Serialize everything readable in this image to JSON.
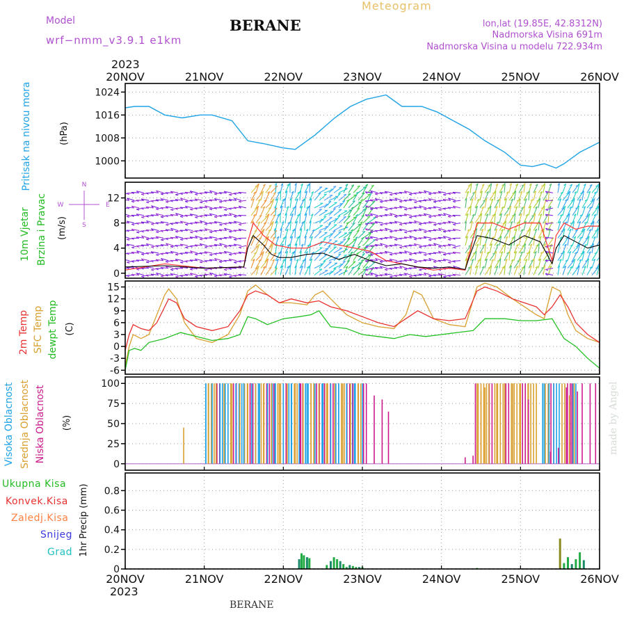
{
  "header": {
    "model_label": "Model",
    "model_name": "wrf−nmm_v3.9.1  e1km",
    "title": "BERANE",
    "meteogram_label": "Meteogram",
    "coords": "lon,lat (19.85E, 42.8312N)",
    "elevation": "Nadmorska Visina 691m",
    "model_elevation": "Nadmorska Visina u modelu 722.934m"
  },
  "time_axis": {
    "top_year": "2023",
    "bottom_year": "2023",
    "labels": [
      "20NOV",
      "21NOV",
      "22NOV",
      "23NOV",
      "24NOV",
      "25NOV",
      "26NOV"
    ]
  },
  "footer_label": "BERANE",
  "watermark": "made by Angel",
  "colors": {
    "pressure": "#1ea3e6",
    "wind_speed": "#000000",
    "wind_gust": "#ff3030",
    "temp2m": "#e8312f",
    "sfc_temp": "#d9a030",
    "dewpoint": "#22c022",
    "high_cloud": "#1ea3e6",
    "mid_cloud": "#d9a030",
    "low_cloud": "#cc1a8c",
    "total_precip": "#22aa44",
    "convective": "#e8312f",
    "freezing": "#ff8040",
    "snow": "#3a3ae0",
    "hail": "#20c0c0",
    "model_label": "#b050d0",
    "panel_label": "#b050d0"
  },
  "chart_data": [
    {
      "type": "line",
      "panel": "pressure",
      "ylabel_name": "Pritisak na nivou mora",
      "unit": "(hPa)",
      "yticks": [
        1000,
        1008,
        1016,
        1024
      ],
      "ylim": [
        994,
        1027
      ],
      "x_days": [
        0,
        0.12,
        0.3,
        0.5,
        0.72,
        0.95,
        1.1,
        1.35,
        1.55,
        1.75,
        2.0,
        2.15,
        2.4,
        2.65,
        2.85,
        3.05,
        3.3,
        3.5,
        3.75,
        3.95,
        4.15,
        4.35,
        4.55,
        4.8,
        5.0,
        5.15,
        5.3,
        5.45,
        5.55,
        5.75,
        6.0
      ],
      "values": [
        1018.5,
        1019,
        1019,
        1016,
        1015,
        1016,
        1016,
        1014,
        1007,
        1006,
        1004.5,
        1004,
        1009,
        1015,
        1019,
        1021.5,
        1023,
        1019,
        1019,
        1017,
        1014,
        1011,
        1007,
        1003,
        998.5,
        998,
        999,
        997.5,
        999,
        1003,
        1006.5
      ]
    },
    {
      "type": "line",
      "panel": "wind",
      "ylabel_name": "10m Vjetar",
      "ylabel_name2": "Brzina i Pravac",
      "unit": "(m/s)",
      "compass": {
        "n": "N",
        "w": "W",
        "e": "E",
        "s": "S"
      },
      "yticks": [
        0,
        4,
        8,
        12
      ],
      "ylim": [
        -0.8,
        14.5
      ],
      "series": [
        {
          "name": "speed",
          "x_days": [
            0,
            0.5,
            1.0,
            1.5,
            1.55,
            1.62,
            1.75,
            1.85,
            1.95,
            2.1,
            2.3,
            2.5,
            2.7,
            2.9,
            3.1,
            3.3,
            3.5,
            3.7,
            3.9,
            4.1,
            4.3,
            4.35,
            4.45,
            4.65,
            4.85,
            5.05,
            5.25,
            5.4,
            5.45,
            5.55,
            5.7,
            5.85,
            6.0
          ],
          "values": [
            1.0,
            1.2,
            0.8,
            1.0,
            4.0,
            6.0,
            4.5,
            3.0,
            2.5,
            2.5,
            3.0,
            3.2,
            2.2,
            3.0,
            2.0,
            1.2,
            1.5,
            1.0,
            0.8,
            1.0,
            0.6,
            2.5,
            6.0,
            5.5,
            4.5,
            6.0,
            5.0,
            1.5,
            4.0,
            6.0,
            5.0,
            4.0,
            4.5
          ]
        },
        {
          "name": "gust",
          "x_days": [
            0,
            0.5,
            1.0,
            1.5,
            1.55,
            1.62,
            1.75,
            1.9,
            2.1,
            2.3,
            2.5,
            2.7,
            2.9,
            3.1,
            3.3,
            3.5,
            3.7,
            3.9,
            4.1,
            4.3,
            4.35,
            4.45,
            4.65,
            4.85,
            5.05,
            5.25,
            5.4,
            5.45,
            5.55,
            5.7,
            5.85,
            6.0
          ],
          "values": [
            0.5,
            1.5,
            0.8,
            1.0,
            5.0,
            8.0,
            6.0,
            4.5,
            4.0,
            4.0,
            5.0,
            4.5,
            4.0,
            3.5,
            2.0,
            1.5,
            1.0,
            0.5,
            0.8,
            0.5,
            3.0,
            8.0,
            8.0,
            7.0,
            8.0,
            8.0,
            2.0,
            6.0,
            8.0,
            7.0,
            7.5,
            7.5
          ]
        }
      ]
    },
    {
      "type": "line",
      "panel": "temperature",
      "ylabel_lines": [
        "2m Temp",
        "SFC Temp",
        "dewpt Temp"
      ],
      "unit": "(C)",
      "yticks": [
        -6,
        -3,
        0,
        3,
        6,
        9,
        12,
        15
      ],
      "ylim": [
        -7,
        16.5
      ],
      "series": [
        {
          "name": "2m Temp",
          "x_days": [
            0,
            0.05,
            0.1,
            0.2,
            0.3,
            0.4,
            0.5,
            0.55,
            0.65,
            0.75,
            0.9,
            1.1,
            1.3,
            1.45,
            1.55,
            1.65,
            1.8,
            1.95,
            2.1,
            2.3,
            2.45,
            2.6,
            2.8,
            3.0,
            3.2,
            3.4,
            3.55,
            3.7,
            3.9,
            4.1,
            4.3,
            4.45,
            4.55,
            4.7,
            4.9,
            5.05,
            5.2,
            5.3,
            5.4,
            5.5,
            5.6,
            5.7,
            5.85,
            6.0
          ],
          "values": [
            -1,
            3,
            5.5,
            4.5,
            4,
            6,
            10,
            12,
            11,
            7,
            5,
            4,
            5,
            9,
            13,
            14,
            13,
            11,
            12,
            11,
            11.5,
            10,
            9,
            7.5,
            6,
            5,
            7,
            9,
            7,
            6.5,
            7,
            14,
            15,
            14,
            12,
            11,
            10,
            8,
            10,
            13,
            10,
            6,
            3,
            1
          ]
        },
        {
          "name": "SFC Temp",
          "x_days": [
            0,
            0.05,
            0.1,
            0.2,
            0.3,
            0.4,
            0.5,
            0.55,
            0.65,
            0.75,
            0.9,
            1.1,
            1.3,
            1.45,
            1.55,
            1.65,
            1.8,
            1.95,
            2.1,
            2.3,
            2.4,
            2.5,
            2.6,
            2.8,
            3.0,
            3.2,
            3.4,
            3.55,
            3.65,
            3.75,
            3.9,
            4.1,
            4.3,
            4.45,
            4.55,
            4.7,
            4.9,
            5.05,
            5.2,
            5.3,
            5.4,
            5.5,
            5.6,
            5.7,
            5.85,
            6.0
          ],
          "values": [
            -5,
            0,
            3,
            2,
            3,
            8,
            13,
            14.5,
            12,
            6,
            2,
            1,
            3,
            8,
            14,
            15.5,
            13,
            11,
            11,
            10.5,
            13,
            14,
            12,
            8,
            6,
            5,
            4.5,
            8,
            14,
            13,
            7,
            5.5,
            5,
            15,
            16,
            15,
            12,
            10,
            8,
            7,
            15,
            14,
            8,
            4,
            2,
            1
          ]
        },
        {
          "name": "dewpt Temp",
          "x_days": [
            0,
            0.05,
            0.12,
            0.2,
            0.3,
            0.5,
            0.7,
            0.9,
            1.1,
            1.3,
            1.45,
            1.55,
            1.65,
            1.8,
            2.0,
            2.2,
            2.35,
            2.45,
            2.6,
            2.8,
            3.0,
            3.2,
            3.4,
            3.6,
            3.8,
            4.0,
            4.2,
            4.4,
            4.55,
            4.8,
            5.0,
            5.2,
            5.4,
            5.55,
            5.7,
            5.85,
            6.0
          ],
          "values": [
            -6,
            -1,
            -0.5,
            -1,
            1,
            2,
            3.5,
            2.5,
            1.5,
            2,
            3,
            7.5,
            7,
            5.5,
            7,
            7.5,
            8,
            9,
            5,
            4.5,
            3,
            2.5,
            2,
            3,
            2.5,
            3,
            3.5,
            4,
            7,
            7,
            6.5,
            6.5,
            7,
            2,
            0,
            -3,
            -5.5
          ]
        }
      ]
    },
    {
      "type": "bar",
      "panel": "cloud",
      "ylabel_lines": [
        "Visoka Oblacnost",
        "Srednja Oblacnost",
        "Niska Oblacnost"
      ],
      "unit": "(%)",
      "yticks": [
        0,
        25,
        50,
        75,
        100
      ],
      "ylim": [
        -8,
        108
      ],
      "series": [
        {
          "name": "Visoka Oblacnost",
          "x_days": [
            1.02,
            1.1,
            1.2,
            1.3,
            1.4,
            1.5,
            1.6,
            1.7,
            1.8,
            1.9,
            2.0,
            2.1,
            2.2,
            2.3,
            2.4,
            2.5,
            2.6,
            2.7,
            2.8,
            2.9,
            3.0,
            5.3,
            5.36,
            5.42
          ],
          "values": [
            100,
            100,
            100,
            100,
            100,
            100,
            100,
            100,
            100,
            100,
            100,
            100,
            100,
            100,
            100,
            100,
            100,
            100,
            100,
            100,
            100,
            100,
            100,
            100
          ]
        },
        {
          "name": "Srednja Oblacnost",
          "x_days": [
            0.74,
            1.05,
            1.15,
            1.25,
            1.35,
            1.45,
            1.55,
            1.65,
            1.75,
            1.85,
            1.95,
            2.05,
            2.15,
            2.25,
            2.35,
            2.45,
            2.55,
            2.65,
            2.75,
            2.85,
            2.95,
            3.05,
            4.45,
            4.5,
            4.55,
            4.6,
            4.7,
            4.8,
            4.9,
            5.0,
            5.1,
            5.2,
            5.62,
            5.68
          ],
          "values": [
            45,
            100,
            100,
            100,
            100,
            100,
            100,
            100,
            100,
            100,
            100,
            100,
            100,
            100,
            100,
            100,
            100,
            100,
            100,
            100,
            100,
            5,
            100,
            90,
            95,
            100,
            100,
            100,
            100,
            100,
            100,
            100,
            85,
            100
          ]
        },
        {
          "name": "Niska Oblacnost",
          "x_days": [
            1.58,
            1.88,
            2.22,
            2.52,
            2.88,
            3.05,
            3.15,
            3.25,
            3.33,
            4.3,
            4.4,
            5.1,
            5.38,
            5.48,
            5.58,
            5.65,
            5.72,
            5.78,
            5.88,
            5.95
          ],
          "values": [
            100,
            100,
            100,
            100,
            100,
            100,
            85,
            80,
            65,
            8,
            10,
            80,
            15,
            20,
            95,
            100,
            90,
            100,
            100,
            100
          ]
        }
      ]
    },
    {
      "type": "bar",
      "panel": "precip",
      "ylabel": "1hr Precip (mm)",
      "legend": [
        "Ukupna Kisa",
        "Konvek.Kisa",
        "Zaledj.Kisa",
        "Snijeg",
        "Grad"
      ],
      "yticks": [
        0,
        0.2,
        0.4,
        0.6,
        0.8
      ],
      "ylim": [
        0,
        0.98
      ],
      "series": [
        {
          "name": "Ukupna Kisa",
          "x_days": [
            2.2,
            2.23,
            2.26,
            2.3,
            2.33,
            2.55,
            2.6,
            2.64,
            2.68,
            2.72,
            2.76,
            2.8,
            2.84,
            2.88,
            2.92,
            2.96,
            3.0,
            4.45,
            5.5,
            5.55,
            5.6,
            5.65,
            5.7,
            5.75,
            5.8
          ],
          "values": [
            0.1,
            0.16,
            0.14,
            0.12,
            0.11,
            0.04,
            0.08,
            0.12,
            0.1,
            0.08,
            0.05,
            0.02,
            0.04,
            0.03,
            0.02,
            0.02,
            0.02,
            0.01,
            0.31,
            0.06,
            0.12,
            0.05,
            0.1,
            0.17,
            0.09
          ]
        }
      ]
    }
  ]
}
